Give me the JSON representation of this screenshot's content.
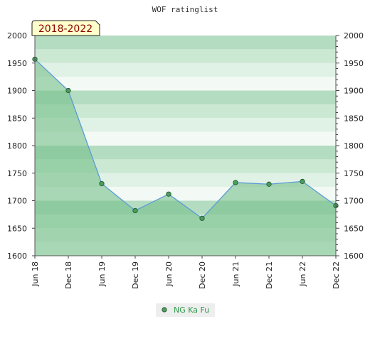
{
  "chart_data": {
    "type": "area",
    "title": "WOF ratinglist",
    "period_label": "2018-2022",
    "categories": [
      "Jun 18",
      "Dec 18",
      "Jun 19",
      "Dec 19",
      "Jun 20",
      "Dec 20",
      "Jun 21",
      "Dec 21",
      "Jun 22",
      "Dec 22"
    ],
    "series": [
      {
        "name": "NG Ka Fu",
        "values": [
          1957,
          1900,
          1731,
          1682,
          1712,
          1668,
          1733,
          1730,
          1735,
          1691
        ]
      }
    ],
    "ylim": [
      1600,
      2000
    ],
    "yticks": [
      1600,
      1650,
      1700,
      1750,
      1800,
      1850,
      1900,
      1950,
      2000
    ],
    "y_minor_step": 10,
    "grid": true,
    "legend_position": "bottom-center",
    "colors": {
      "line": "#5b9bd5",
      "marker_fill": "#4a9e5a",
      "marker_stroke": "#1e4d2b",
      "area": "#77c08a",
      "band_dark": "#b4dcc1",
      "band_mid": "#cbe8d3",
      "band_light": "#e0f1e5",
      "band_white": "#f3f9f4",
      "legend_bg": "#eeeeee",
      "badge_bg": "#ffffcc"
    }
  }
}
